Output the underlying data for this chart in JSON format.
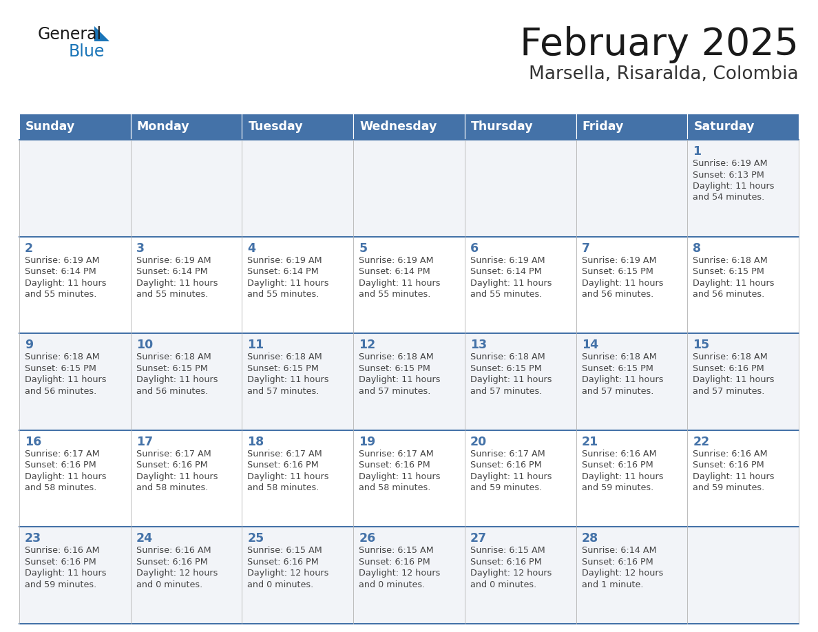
{
  "title": "February 2025",
  "subtitle": "Marsella, Risaralda, Colombia",
  "header_color": "#4472a8",
  "header_text_color": "#ffffff",
  "cell_bg_odd": "#f2f4f8",
  "cell_bg_even": "#ffffff",
  "border_color": "#4472a8",
  "day_number_color": "#4472a8",
  "text_color": "#444444",
  "grid_color": "#bbbbbb",
  "days_of_week": [
    "Sunday",
    "Monday",
    "Tuesday",
    "Wednesday",
    "Thursday",
    "Friday",
    "Saturday"
  ],
  "calendar_data": [
    [
      {
        "day": null,
        "sunrise": null,
        "sunset": null,
        "daylight": null
      },
      {
        "day": null,
        "sunrise": null,
        "sunset": null,
        "daylight": null
      },
      {
        "day": null,
        "sunrise": null,
        "sunset": null,
        "daylight": null
      },
      {
        "day": null,
        "sunrise": null,
        "sunset": null,
        "daylight": null
      },
      {
        "day": null,
        "sunrise": null,
        "sunset": null,
        "daylight": null
      },
      {
        "day": null,
        "sunrise": null,
        "sunset": null,
        "daylight": null
      },
      {
        "day": 1,
        "sunrise": "6:19 AM",
        "sunset": "6:13 PM",
        "daylight": "11 hours\nand 54 minutes."
      }
    ],
    [
      {
        "day": 2,
        "sunrise": "6:19 AM",
        "sunset": "6:14 PM",
        "daylight": "11 hours\nand 55 minutes."
      },
      {
        "day": 3,
        "sunrise": "6:19 AM",
        "sunset": "6:14 PM",
        "daylight": "11 hours\nand 55 minutes."
      },
      {
        "day": 4,
        "sunrise": "6:19 AM",
        "sunset": "6:14 PM",
        "daylight": "11 hours\nand 55 minutes."
      },
      {
        "day": 5,
        "sunrise": "6:19 AM",
        "sunset": "6:14 PM",
        "daylight": "11 hours\nand 55 minutes."
      },
      {
        "day": 6,
        "sunrise": "6:19 AM",
        "sunset": "6:14 PM",
        "daylight": "11 hours\nand 55 minutes."
      },
      {
        "day": 7,
        "sunrise": "6:19 AM",
        "sunset": "6:15 PM",
        "daylight": "11 hours\nand 56 minutes."
      },
      {
        "day": 8,
        "sunrise": "6:18 AM",
        "sunset": "6:15 PM",
        "daylight": "11 hours\nand 56 minutes."
      }
    ],
    [
      {
        "day": 9,
        "sunrise": "6:18 AM",
        "sunset": "6:15 PM",
        "daylight": "11 hours\nand 56 minutes."
      },
      {
        "day": 10,
        "sunrise": "6:18 AM",
        "sunset": "6:15 PM",
        "daylight": "11 hours\nand 56 minutes."
      },
      {
        "day": 11,
        "sunrise": "6:18 AM",
        "sunset": "6:15 PM",
        "daylight": "11 hours\nand 57 minutes."
      },
      {
        "day": 12,
        "sunrise": "6:18 AM",
        "sunset": "6:15 PM",
        "daylight": "11 hours\nand 57 minutes."
      },
      {
        "day": 13,
        "sunrise": "6:18 AM",
        "sunset": "6:15 PM",
        "daylight": "11 hours\nand 57 minutes."
      },
      {
        "day": 14,
        "sunrise": "6:18 AM",
        "sunset": "6:15 PM",
        "daylight": "11 hours\nand 57 minutes."
      },
      {
        "day": 15,
        "sunrise": "6:18 AM",
        "sunset": "6:16 PM",
        "daylight": "11 hours\nand 57 minutes."
      }
    ],
    [
      {
        "day": 16,
        "sunrise": "6:17 AM",
        "sunset": "6:16 PM",
        "daylight": "11 hours\nand 58 minutes."
      },
      {
        "day": 17,
        "sunrise": "6:17 AM",
        "sunset": "6:16 PM",
        "daylight": "11 hours\nand 58 minutes."
      },
      {
        "day": 18,
        "sunrise": "6:17 AM",
        "sunset": "6:16 PM",
        "daylight": "11 hours\nand 58 minutes."
      },
      {
        "day": 19,
        "sunrise": "6:17 AM",
        "sunset": "6:16 PM",
        "daylight": "11 hours\nand 58 minutes."
      },
      {
        "day": 20,
        "sunrise": "6:17 AM",
        "sunset": "6:16 PM",
        "daylight": "11 hours\nand 59 minutes."
      },
      {
        "day": 21,
        "sunrise": "6:16 AM",
        "sunset": "6:16 PM",
        "daylight": "11 hours\nand 59 minutes."
      },
      {
        "day": 22,
        "sunrise": "6:16 AM",
        "sunset": "6:16 PM",
        "daylight": "11 hours\nand 59 minutes."
      }
    ],
    [
      {
        "day": 23,
        "sunrise": "6:16 AM",
        "sunset": "6:16 PM",
        "daylight": "11 hours\nand 59 minutes."
      },
      {
        "day": 24,
        "sunrise": "6:16 AM",
        "sunset": "6:16 PM",
        "daylight": "12 hours\nand 0 minutes."
      },
      {
        "day": 25,
        "sunrise": "6:15 AM",
        "sunset": "6:16 PM",
        "daylight": "12 hours\nand 0 minutes."
      },
      {
        "day": 26,
        "sunrise": "6:15 AM",
        "sunset": "6:16 PM",
        "daylight": "12 hours\nand 0 minutes."
      },
      {
        "day": 27,
        "sunrise": "6:15 AM",
        "sunset": "6:16 PM",
        "daylight": "12 hours\nand 0 minutes."
      },
      {
        "day": 28,
        "sunrise": "6:14 AM",
        "sunset": "6:16 PM",
        "daylight": "12 hours\nand 1 minute."
      },
      {
        "day": null,
        "sunrise": null,
        "sunset": null,
        "daylight": null
      }
    ]
  ],
  "logo_general_color": "#1a1a1a",
  "logo_blue_color": "#1a75b8",
  "logo_triangle_color": "#1a75b8",
  "title_color": "#1a1a1a",
  "subtitle_color": "#333333"
}
